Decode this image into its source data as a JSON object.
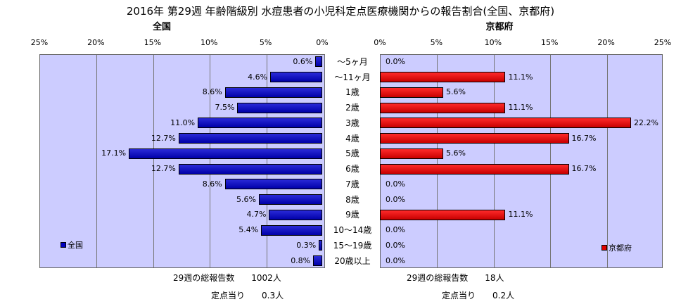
{
  "chart_data": {
    "type": "bar",
    "title": "2016年 第29週 年齢階級別 水痘患者の小児科定点医療機関からの報告割合(全国、京都府)",
    "categories": [
      "～5ヶ月",
      "～11ヶ月",
      "1歳",
      "2歳",
      "3歳",
      "4歳",
      "5歳",
      "6歳",
      "7歳",
      "8歳",
      "9歳",
      "10～14歳",
      "15～19歳",
      "20歳以上"
    ],
    "xticks": [
      "25%",
      "20%",
      "15%",
      "10%",
      "5%",
      "0%"
    ],
    "xticks_right": [
      "0%",
      "5%",
      "10%",
      "15%",
      "20%",
      "25%"
    ],
    "xlim": [
      0,
      25
    ],
    "grid": true,
    "series": [
      {
        "name": "全国",
        "panel_title": "全国",
        "color": "#0000c0",
        "legend_position": "bottom-left",
        "values": [
          0.6,
          4.6,
          8.6,
          7.5,
          11.0,
          12.7,
          17.1,
          12.7,
          8.6,
          5.6,
          4.7,
          5.4,
          0.3,
          0.8
        ],
        "labels": [
          "0.6%",
          "4.6%",
          "8.6%",
          "7.5%",
          "11.0%",
          "12.7%",
          "17.1%",
          "12.7%",
          "8.6%",
          "5.6%",
          "4.7%",
          "5.4%",
          "0.3%",
          "0.8%"
        ],
        "total_text": "29週の総報告数　　1002人",
        "per_site_text": "定点当り　　0.3人"
      },
      {
        "name": "京都府",
        "panel_title": "京都府",
        "color": "#e00000",
        "legend_position": "bottom-right",
        "values": [
          0.0,
          11.1,
          5.6,
          11.1,
          22.2,
          16.7,
          5.6,
          16.7,
          0.0,
          0.0,
          11.1,
          0.0,
          0.0,
          0.0
        ],
        "labels": [
          "0.0%",
          "11.1%",
          "5.6%",
          "11.1%",
          "22.2%",
          "16.7%",
          "5.6%",
          "16.7%",
          "0.0%",
          "0.0%",
          "11.1%",
          "0.0%",
          "0.0%",
          "0.0%"
        ],
        "total_text": "29週の総報告数　　18人",
        "per_site_text": "定点当り　　0.2人"
      }
    ]
  }
}
